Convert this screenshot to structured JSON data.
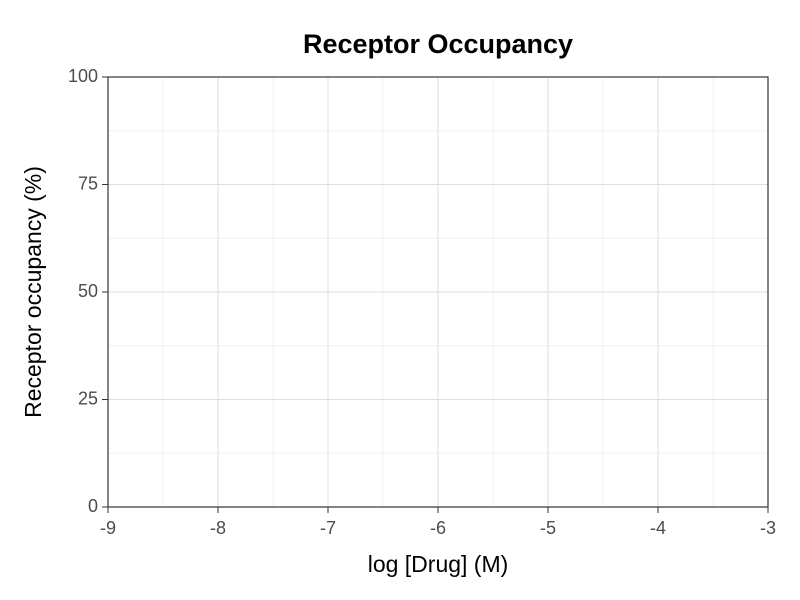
{
  "chart_data": {
    "type": "line",
    "title": "Receptor Occupancy",
    "x_label": "log [Drug] (M)",
    "y_label": "Receptor occupancy (%)",
    "series": [],
    "xlim": [
      -9,
      -3
    ],
    "xticks": [
      -9,
      -8,
      -7,
      -6,
      -5,
      -4,
      -3
    ],
    "x_minor_gridlines": [
      -8.5,
      -7.5,
      -6.5,
      -5.5,
      -4.5,
      -3.5
    ],
    "ylim": [
      0,
      100
    ],
    "yticks": [
      0,
      25,
      50,
      75,
      100
    ],
    "y_minor_gridlines": [
      12.5,
      37.5,
      62.5,
      87.5
    ],
    "grid": true
  }
}
